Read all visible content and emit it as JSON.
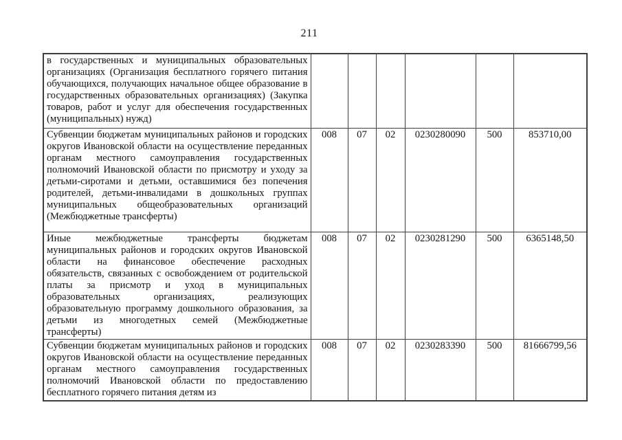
{
  "page": {
    "number": "211"
  },
  "table": {
    "column_names": [
      "description",
      "grbs_code",
      "section_code",
      "subsection_code",
      "target_article_code",
      "expense_type_code",
      "amount"
    ],
    "rows": [
      {
        "description": "в государственных и муниципальных образовательных организациях (Организация бесплатного горячего питания обучающихся, получающих начальное общее образование в государственных образовательных организациях) (Закупка товаров, работ и услуг для обеспечения государственных (муниципальных) нужд)",
        "grbs_code": "",
        "section_code": "",
        "subsection_code": "",
        "target_article_code": "",
        "expense_type_code": "",
        "amount": ""
      },
      {
        "description": "Субвенции бюджетам муниципальных районов и городских округов Ивановской области на осуществление переданных органам местного самоуправления государственных полномочий Ивановской области по присмотру и уходу за детьми-сиротами и детьми, оставшимися без попечения родителей, детьми-инвалидами в дошкольных группах муниципальных общеобразовательных организаций (Межбюджетные трансферты)",
        "grbs_code": "008",
        "section_code": "07",
        "subsection_code": "02",
        "target_article_code": "0230280090",
        "expense_type_code": "500",
        "amount": "853710,00"
      },
      {
        "description": "Иные межбюджетные трансферты бюджетам муниципальных районов и городских округов Ивановской области на финансовое обеспечение расходных обязательств, связанных с освобождением от родительской платы за присмотр и уход в муниципальных образовательных организациях, реализующих образовательную программу дошкольного образования, за детьми из многодетных семей (Межбюджетные трансферты)",
        "grbs_code": "008",
        "section_code": "07",
        "subsection_code": "02",
        "target_article_code": "0230281290",
        "expense_type_code": "500",
        "amount": "6365148,50"
      },
      {
        "description": "Субвенции бюджетам муниципальных районов и городских округов Ивановской области на осуществление переданных органам местного самоуправления государственных полномочий Ивановской области по предоставлению бесплатного горячего питания детям из",
        "grbs_code": "008",
        "section_code": "07",
        "subsection_code": "02",
        "target_article_code": "0230283390",
        "expense_type_code": "500",
        "amount": "81666799,56"
      }
    ]
  }
}
